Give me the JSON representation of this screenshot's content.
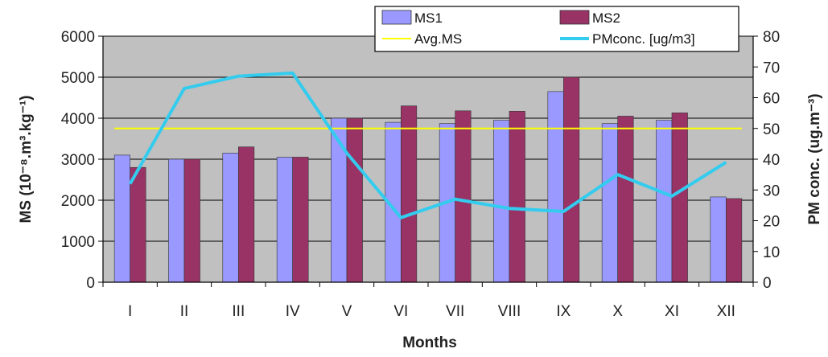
{
  "chart_data": {
    "type": "bar",
    "categories": [
      "I",
      "II",
      "III",
      "IV",
      "V",
      "VI",
      "VII",
      "VIII",
      "IX",
      "X",
      "XI",
      "XII"
    ],
    "series": [
      {
        "name": "MS1",
        "type": "bar",
        "axis": "left",
        "color": "#9999ff",
        "values": [
          3100,
          3000,
          3150,
          3050,
          4000,
          3900,
          3870,
          3950,
          4650,
          3870,
          3950,
          2080
        ]
      },
      {
        "name": "MS2",
        "type": "bar",
        "axis": "left",
        "color": "#993366",
        "values": [
          2800,
          3000,
          3300,
          3050,
          4000,
          4300,
          4180,
          4170,
          5000,
          4050,
          4130,
          2040
        ]
      },
      {
        "name": "Avg.MS",
        "type": "line",
        "axis": "left",
        "color": "#ffff00",
        "values": [
          3750,
          3750,
          3750,
          3750,
          3750,
          3750,
          3750,
          3750,
          3750,
          3750,
          3750,
          3750
        ]
      },
      {
        "name": "PMconc. [ug/m3]",
        "type": "line",
        "axis": "right",
        "color": "#33ccee",
        "values": [
          32,
          63,
          67,
          68,
          42,
          21,
          27,
          24,
          23,
          35,
          28,
          39
        ]
      }
    ],
    "xlabel": "Months",
    "ylabel_left": "MS (10⁻⁸.m³.kg⁻¹)",
    "ylabel_right": "PM conc. (ug.m⁻³)",
    "ylim_left": [
      0,
      6000
    ],
    "yticks_left": [
      "0",
      "1000",
      "2000",
      "3000",
      "4000",
      "5000",
      "6000"
    ],
    "ylim_right": [
      0,
      80
    ],
    "yticks_right": [
      "0",
      "10",
      "20",
      "30",
      "40",
      "50",
      "60",
      "70",
      "80"
    ],
    "grid": true,
    "plot_background": "#c0c0c0",
    "legend_position": "top-right"
  }
}
